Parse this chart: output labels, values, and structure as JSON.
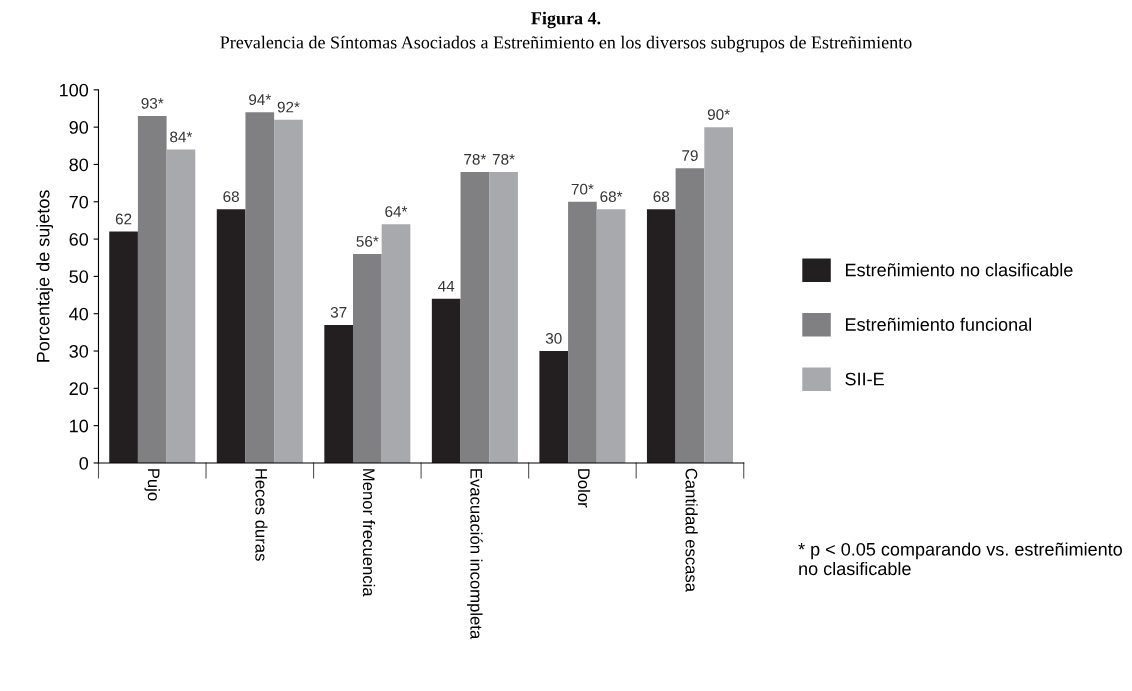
{
  "chart_data": {
    "type": "bar",
    "title": "Figura 4.",
    "subtitle": "Prevalencia de Síntomas Asociados a Estreñimiento en los diversos subgrupos de Estreñimiento",
    "ylabel": "Porcentaje de sujetos",
    "categories": [
      "Pujo",
      "Heces duras",
      "Menor frecuencia",
      "Evacuación incompleta",
      "Dolor",
      "Cantidad escasa"
    ],
    "series": [
      {
        "name": "Estreñimiento no clasificable",
        "color": "#231f20",
        "values": [
          62,
          68,
          37,
          44,
          30,
          68
        ],
        "value_labels": [
          "62",
          "68",
          "37",
          "44",
          "30",
          "68"
        ]
      },
      {
        "name": "Estreñimiento funcional",
        "color": "#808083",
        "values": [
          93,
          94,
          56,
          78,
          70,
          79
        ],
        "value_labels": [
          "93*",
          "94*",
          "56*",
          "78*",
          "70*",
          "79"
        ]
      },
      {
        "name": "SII-E",
        "color": "#a7a9ac",
        "values": [
          84,
          92,
          64,
          78,
          68,
          90
        ],
        "value_labels": [
          "84*",
          "92*",
          "64*",
          "78*",
          "68*",
          "90*"
        ]
      }
    ],
    "ylim": [
      0,
      100
    ],
    "yticks": [
      0,
      10,
      20,
      30,
      40,
      50,
      60,
      70,
      80,
      90,
      100
    ],
    "grid": false,
    "legend": "right",
    "annotations": [
      "* p < 0.05 comparando vs. estreñimiento no clasificable"
    ]
  }
}
